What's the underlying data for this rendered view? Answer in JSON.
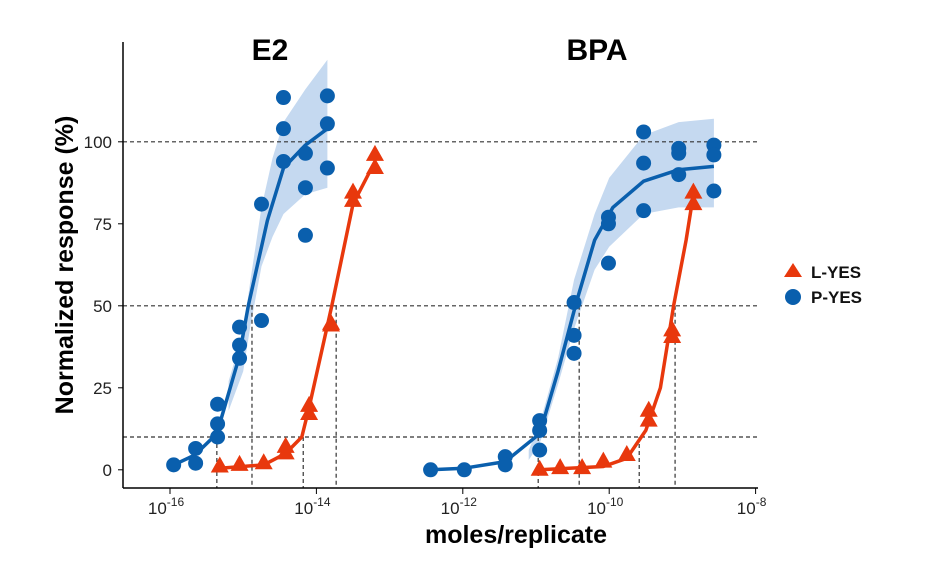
{
  "chart_data": {
    "type": "scatter",
    "xlabel": "moles/replicate",
    "ylabel": "Normalized response (%)",
    "x_scale": "log10",
    "xlim_log10": [
      -16.65,
      -7.95
    ],
    "ylim": [
      -5,
      130
    ],
    "x_ticks": [
      {
        "base": "10",
        "exp": "-16"
      },
      {
        "base": "10",
        "exp": "-14"
      },
      {
        "base": "10",
        "exp": "-12"
      },
      {
        "base": "10",
        "exp": "-10"
      },
      {
        "base": "10",
        "exp": "-8"
      }
    ],
    "y_ticks": [
      0,
      25,
      50,
      75,
      100
    ],
    "reference_lines_y": [
      10,
      50,
      100
    ],
    "legend": {
      "position": "right",
      "entries": [
        {
          "label": "L-YES",
          "color": "#e8380d",
          "marker": "triangle"
        },
        {
          "label": "P-YES",
          "color": "#0a5fad",
          "marker": "circle"
        }
      ]
    },
    "band_color": "#c5d9f0",
    "panels": [
      {
        "title": "E2",
        "series": [
          {
            "name": "P-YES",
            "points": [
              [
                -15.95,
                1.5
              ],
              [
                -15.65,
                2
              ],
              [
                -15.65,
                6.5
              ],
              [
                -15.35,
                10
              ],
              [
                -15.35,
                14
              ],
              [
                -15.35,
                20
              ],
              [
                -15.05,
                34
              ],
              [
                -15.05,
                38
              ],
              [
                -15.05,
                43.5
              ],
              [
                -14.75,
                45.5
              ],
              [
                -14.75,
                81
              ],
              [
                -14.45,
                94
              ],
              [
                -14.45,
                104
              ],
              [
                -14.45,
                113.5
              ],
              [
                -14.15,
                71.5
              ],
              [
                -14.15,
                86
              ],
              [
                -14.15,
                96.5
              ],
              [
                -13.85,
                114
              ],
              [
                -13.85,
                105.5
              ],
              [
                -13.85,
                92
              ]
            ],
            "fit": [
              [
                -15.95,
                1.5
              ],
              [
                -15.66,
                4.5
              ],
              [
                -15.36,
                11
              ],
              [
                -15.06,
                34
              ],
              [
                -14.93,
                50
              ],
              [
                -14.67,
                76
              ],
              [
                -14.45,
                92
              ],
              [
                -14.15,
                99
              ],
              [
                -13.85,
                104
              ]
            ],
            "band_upper": [
              [
                -15.2,
                27
              ],
              [
                -15.0,
                42
              ],
              [
                -14.9,
                58
              ],
              [
                -14.75,
                80
              ],
              [
                -14.6,
                95
              ],
              [
                -14.45,
                106
              ],
              [
                -14.15,
                116
              ],
              [
                -13.85,
                125
              ]
            ],
            "band_lower": [
              [
                -15.2,
                18
              ],
              [
                -15.0,
                30
              ],
              [
                -14.9,
                44
              ],
              [
                -14.75,
                62
              ],
              [
                -14.6,
                71
              ],
              [
                -14.45,
                78
              ],
              [
                -14.15,
                84
              ],
              [
                -13.85,
                86
              ]
            ],
            "ec_lines": [
              [
                -15.36,
                10
              ],
              [
                -14.88,
                50
              ]
            ]
          },
          {
            "name": "L-YES",
            "points": [
              [
                -15.32,
                1
              ],
              [
                -15.05,
                1.5
              ],
              [
                -14.72,
                2
              ],
              [
                -14.42,
                5
              ],
              [
                -14.42,
                7
              ],
              [
                -14.1,
                17
              ],
              [
                -14.1,
                19.5
              ],
              [
                -13.8,
                44
              ],
              [
                -13.8,
                44.5
              ],
              [
                -13.5,
                82
              ],
              [
                -13.5,
                84.5
              ],
              [
                -13.2,
                92
              ],
              [
                -13.2,
                96
              ]
            ],
            "fit": [
              [
                -15.32,
                0.5
              ],
              [
                -14.72,
                1.5
              ],
              [
                -14.42,
                5
              ],
              [
                -14.2,
                10
              ],
              [
                -14.1,
                19
              ],
              [
                -13.79,
                50
              ],
              [
                -13.5,
                81
              ],
              [
                -13.2,
                94
              ]
            ],
            "ec_lines": [
              [
                -14.18,
                10
              ],
              [
                -13.73,
                50
              ]
            ]
          }
        ]
      },
      {
        "title": "BPA",
        "series": [
          {
            "name": "P-YES",
            "points": [
              [
                -12.44,
                0
              ],
              [
                -11.98,
                0
              ],
              [
                -11.42,
                4
              ],
              [
                -11.42,
                1.5
              ],
              [
                -10.95,
                15
              ],
              [
                -10.95,
                12
              ],
              [
                -10.95,
                6
              ],
              [
                -10.48,
                51
              ],
              [
                -10.48,
                41
              ],
              [
                -10.48,
                35.5
              ],
              [
                -10.01,
                77
              ],
              [
                -10.01,
                75
              ],
              [
                -10.01,
                63
              ],
              [
                -9.53,
                103
              ],
              [
                -9.53,
                93.5
              ],
              [
                -9.53,
                79
              ],
              [
                -9.05,
                98
              ],
              [
                -9.05,
                96.5
              ],
              [
                -9.05,
                90
              ],
              [
                -8.57,
                99
              ],
              [
                -8.57,
                96
              ],
              [
                -8.57,
                85
              ]
            ],
            "fit": [
              [
                -12.44,
                0
              ],
              [
                -11.98,
                0.5
              ],
              [
                -11.42,
                2.5
              ],
              [
                -10.95,
                11
              ],
              [
                -10.7,
                30
              ],
              [
                -10.45,
                51
              ],
              [
                -10.2,
                70
              ],
              [
                -9.95,
                80
              ],
              [
                -9.53,
                88
              ],
              [
                -9.05,
                91.5
              ],
              [
                -8.57,
                92.5
              ]
            ],
            "band_upper": [
              [
                -11.1,
                6
              ],
              [
                -10.95,
                14
              ],
              [
                -10.7,
                34
              ],
              [
                -10.48,
                58
              ],
              [
                -10.2,
                78
              ],
              [
                -10.0,
                89
              ],
              [
                -9.53,
                102
              ],
              [
                -9.05,
                106
              ],
              [
                -8.57,
                107
              ]
            ],
            "band_lower": [
              [
                -11.1,
                3
              ],
              [
                -10.95,
                8
              ],
              [
                -10.7,
                26
              ],
              [
                -10.48,
                43
              ],
              [
                -10.2,
                61
              ],
              [
                -10.0,
                68
              ],
              [
                -9.53,
                78
              ],
              [
                -9.05,
                80
              ],
              [
                -8.57,
                80
              ]
            ],
            "ec_lines": [
              [
                -10.97,
                10
              ],
              [
                -10.41,
                50
              ]
            ]
          },
          {
            "name": "L-YES",
            "points": [
              [
                -10.95,
                0
              ],
              [
                -10.67,
                0.5
              ],
              [
                -10.37,
                0.5
              ],
              [
                -10.08,
                2.5
              ],
              [
                -9.76,
                4.5
              ],
              [
                -9.46,
                15
              ],
              [
                -9.46,
                18
              ],
              [
                -9.14,
                40.5
              ],
              [
                -9.14,
                42.5
              ],
              [
                -8.85,
                81
              ],
              [
                -8.85,
                84.5
              ]
            ],
            "fit": [
              [
                -10.95,
                0
              ],
              [
                -10.08,
                1
              ],
              [
                -9.76,
                3.5
              ],
              [
                -9.5,
                12
              ],
              [
                -9.3,
                25
              ],
              [
                -9.12,
                50
              ],
              [
                -8.95,
                70
              ],
              [
                -8.85,
                84
              ]
            ],
            "ec_lines": [
              [
                -9.59,
                10
              ],
              [
                -9.1,
                50
              ]
            ]
          }
        ]
      }
    ]
  }
}
